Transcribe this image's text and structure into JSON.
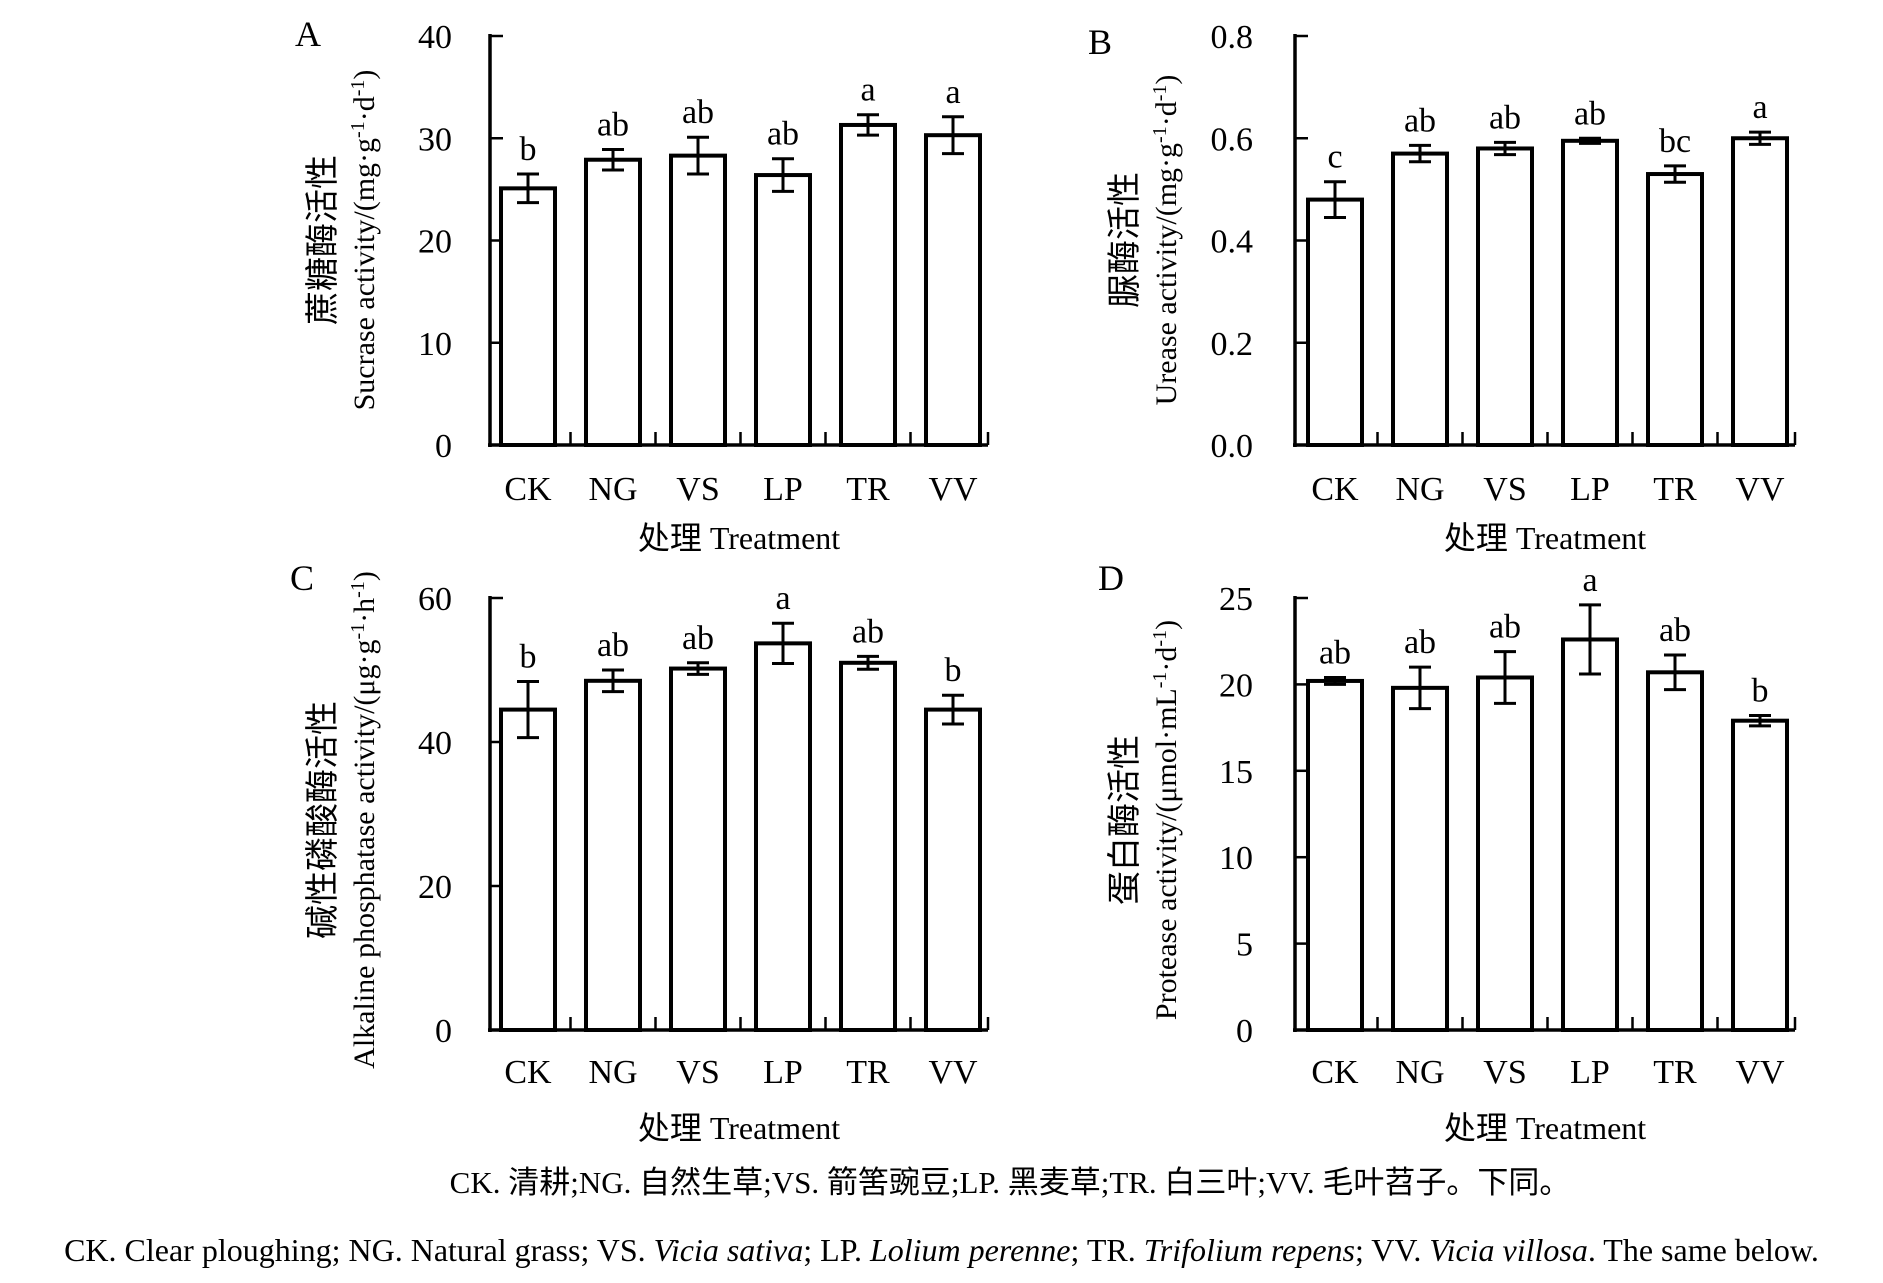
{
  "colors": {
    "ink": "#000000",
    "bar_fill": "#ffffff",
    "background": "#ffffff"
  },
  "chart_data": [
    {
      "panel_label": "A",
      "type": "bar",
      "ylabel_cn": "蔗糖酶活性",
      "ylabel_en": "Sucrase activity/(mg·g^-1·d^-1)",
      "xlabel": "处理 Treatment",
      "categories": [
        "CK",
        "NG",
        "VS",
        "LP",
        "TR",
        "VV"
      ],
      "values": [
        25.1,
        27.9,
        28.3,
        26.4,
        31.3,
        30.3
      ],
      "errors": [
        1.4,
        1.0,
        1.8,
        1.6,
        1.0,
        1.8
      ],
      "sig_letters": [
        "b",
        "ab",
        "ab",
        "ab",
        "a",
        "a"
      ],
      "ylim": [
        0,
        40
      ],
      "ytick_labels": [
        "0",
        "10",
        "20",
        "30",
        "40"
      ],
      "grid": false,
      "legend": "none"
    },
    {
      "panel_label": "B",
      "type": "bar",
      "ylabel_cn": "脲酶活性",
      "ylabel_en": "Urease activity/(mg·g^-1·d^-1)",
      "xlabel": "处理 Treatment",
      "categories": [
        "CK",
        "NG",
        "VS",
        "LP",
        "TR",
        "VV"
      ],
      "values": [
        0.48,
        0.57,
        0.58,
        0.595,
        0.53,
        0.6
      ],
      "errors": [
        0.035,
        0.016,
        0.012,
        0.005,
        0.016,
        0.012
      ],
      "sig_letters": [
        "c",
        "ab",
        "ab",
        "ab",
        "bc",
        "a"
      ],
      "ylim": [
        0,
        0.8
      ],
      "ytick_labels": [
        "0.0",
        "0.2",
        "0.4",
        "0.6",
        "0.8"
      ],
      "grid": false,
      "legend": "none"
    },
    {
      "panel_label": "C",
      "type": "bar",
      "ylabel_cn": "碱性磷酸酶活性",
      "ylabel_en": "Alkaline phosphatase activity/(μg·g^-1·h^-1)",
      "xlabel": "处理 Treatment",
      "categories": [
        "CK",
        "NG",
        "VS",
        "LP",
        "TR",
        "VV"
      ],
      "values": [
        44.5,
        48.5,
        50.2,
        53.7,
        51.0,
        44.5
      ],
      "errors": [
        3.9,
        1.5,
        0.8,
        2.8,
        0.9,
        2.0
      ],
      "sig_letters": [
        "b",
        "ab",
        "ab",
        "a",
        "ab",
        "b"
      ],
      "ylim": [
        0,
        60
      ],
      "ytick_labels": [
        "0",
        "20",
        "40",
        "60"
      ],
      "grid": false,
      "legend": "none"
    },
    {
      "panel_label": "D",
      "type": "bar",
      "ylabel_cn": "蛋白酶活性",
      "ylabel_en": "Protease activity/(μmol·mL^-1·d^-1)",
      "xlabel": "处理 Treatment",
      "categories": [
        "CK",
        "NG",
        "VS",
        "LP",
        "TR",
        "VV"
      ],
      "values": [
        20.2,
        19.8,
        20.4,
        22.6,
        20.7,
        17.9
      ],
      "errors": [
        0.2,
        1.2,
        1.5,
        2.0,
        1.0,
        0.3
      ],
      "sig_letters": [
        "ab",
        "ab",
        "ab",
        "a",
        "ab",
        "b"
      ],
      "ylim": [
        0,
        25
      ],
      "ytick_labels": [
        "0",
        "5",
        "10",
        "15",
        "20",
        "25"
      ],
      "grid": false,
      "legend": "none"
    }
  ],
  "captions": {
    "chinese": "CK. 清耕;NG. 自然生草;VS. 箭筈豌豆;LP. 黑麦草;TR. 白三叶;VV. 毛叶苕子。下同。",
    "english_segments": [
      {
        "text": "CK. Clear ploughing; NG. Natural grass; VS. ",
        "italic": false
      },
      {
        "text": "Vicia sativa",
        "italic": true
      },
      {
        "text": "; LP. ",
        "italic": false
      },
      {
        "text": "Lolium perenne",
        "italic": true
      },
      {
        "text": "; TR. ",
        "italic": false
      },
      {
        "text": "Trifolium repens",
        "italic": true
      },
      {
        "text": "; VV. ",
        "italic": false
      },
      {
        "text": "Vicia villosa",
        "italic": true
      },
      {
        "text": ". The same below.",
        "italic": false
      }
    ]
  }
}
